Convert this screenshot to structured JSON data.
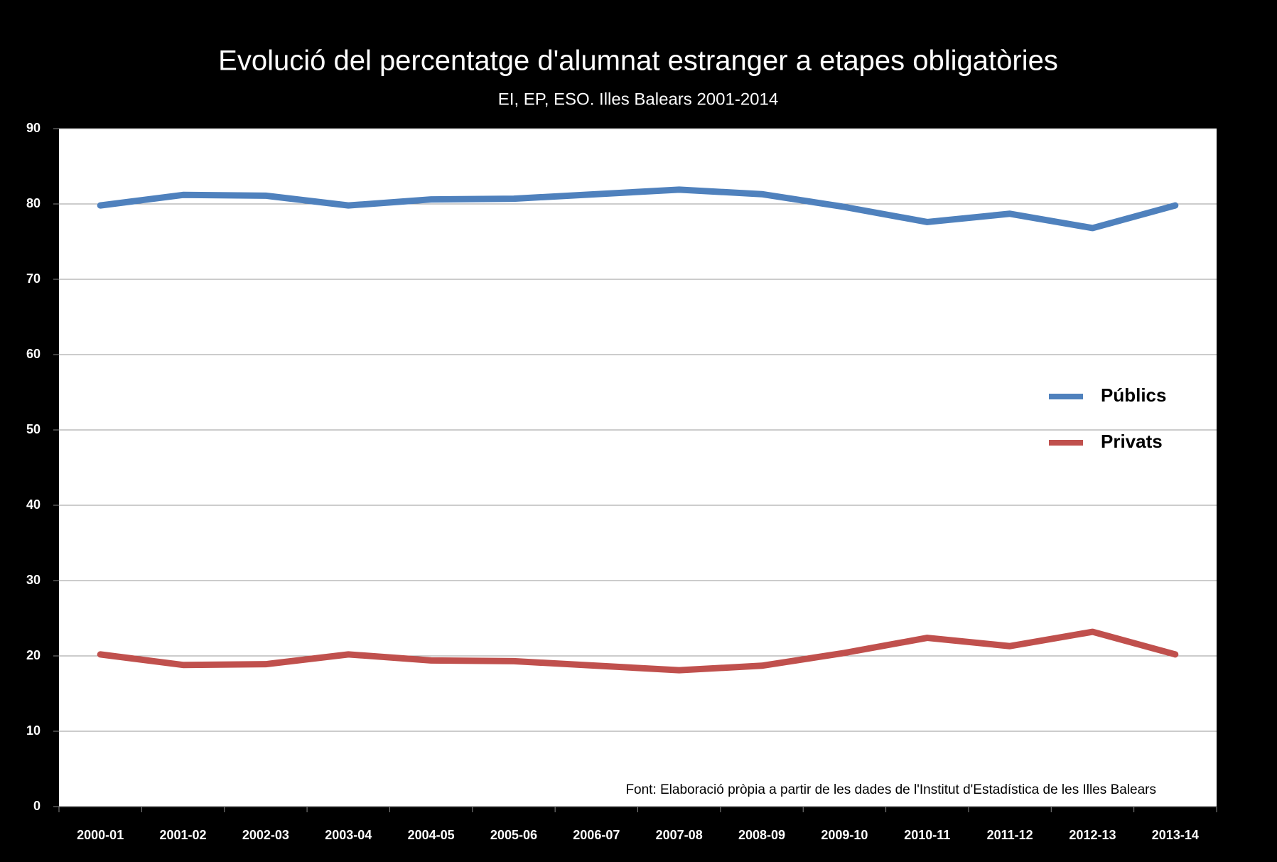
{
  "chart_data": {
    "type": "line",
    "title": "Evolució del percentatge d'alumnat  estranger a etapes obligatòries",
    "subtitle": "EI, EP, ESO. Illes Balears 2001-2014",
    "annotation": "Font: Elaboració pròpia a partir de les dades de l'Institut d'Estadística de les Illes Balears",
    "categories": [
      "2000-01",
      "2001-02",
      "2002-03",
      "2003-04",
      "2004-05",
      "2005-06",
      "2006-07",
      "2007-08",
      "2008-09",
      "2009-10",
      "2010-11",
      "2011-12",
      "2012-13",
      "2013-14"
    ],
    "series": [
      {
        "name": "Públics",
        "color": "#4f81bd",
        "values": [
          79.8,
          81.2,
          81.1,
          79.8,
          80.6,
          80.7,
          81.3,
          81.9,
          81.3,
          79.6,
          77.6,
          78.7,
          76.8,
          79.8
        ]
      },
      {
        "name": "Privats",
        "color": "#c0504d",
        "values": [
          20.2,
          18.8,
          18.9,
          20.2,
          19.4,
          19.3,
          18.7,
          18.1,
          18.7,
          20.4,
          22.4,
          21.3,
          23.2,
          20.2
        ]
      }
    ],
    "ylim": [
      0,
      90
    ],
    "yticks": [
      0,
      10,
      20,
      30,
      40,
      50,
      60,
      70,
      80,
      90
    ],
    "grid": true,
    "legend": "right"
  }
}
